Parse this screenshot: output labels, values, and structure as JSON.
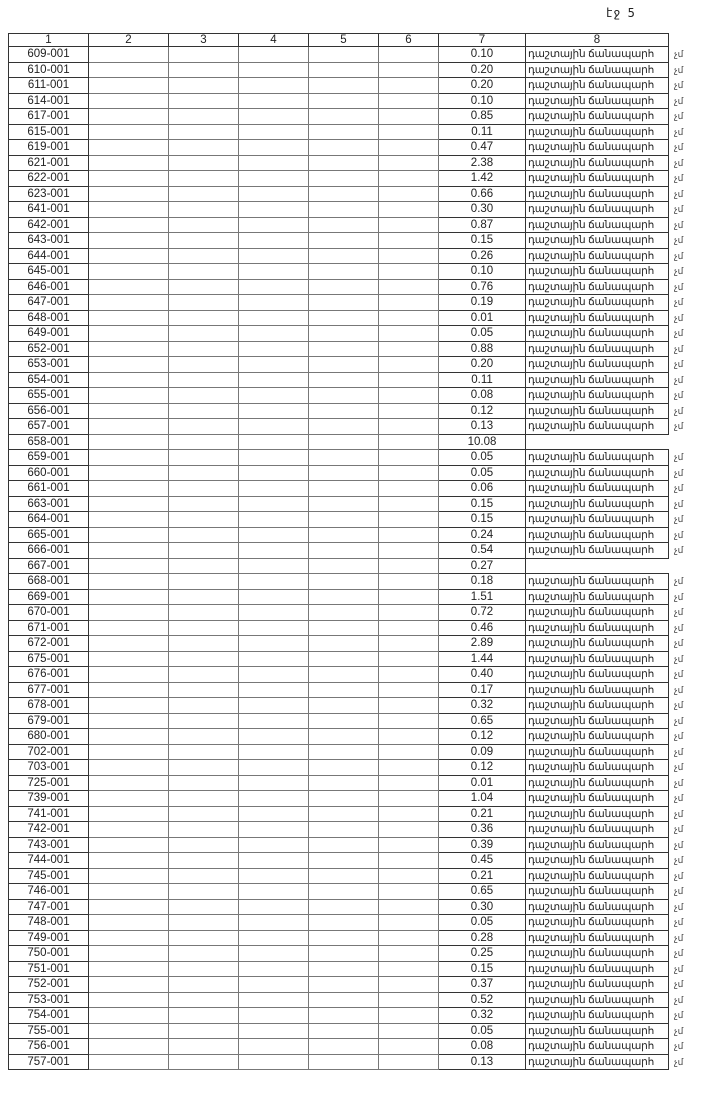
{
  "page_label": "էջ 5",
  "columns": [
    "1",
    "2",
    "3",
    "4",
    "5",
    "6",
    "7",
    "8"
  ],
  "rows": [
    [
      "609-001",
      "0.10",
      "դաշտային ճանապարհ",
      "չմ"
    ],
    [
      "610-001",
      "0.20",
      "դաշտային ճանապարհ",
      "չմ"
    ],
    [
      "611-001",
      "0.20",
      "դաշտային ճանապարհ",
      "չմ"
    ],
    [
      "614-001",
      "0.10",
      "դաշտային ճանապարհ",
      "չմ"
    ],
    [
      "617-001",
      "0.85",
      "դաշտային ճանապարհ",
      "չմ"
    ],
    [
      "615-001",
      "0.11",
      "դաշտային ճանապարհ",
      "չմ"
    ],
    [
      "619-001",
      "0.47",
      "դաշտային ճանապարհ",
      "չմ"
    ],
    [
      "621-001",
      "2.38",
      "դաշտային ճանապարհ",
      "չմ"
    ],
    [
      "622-001",
      "1.42",
      "դաշտային ճանապարհ",
      "չմ"
    ],
    [
      "623-001",
      "0.66",
      "դաշտային ճանապարհ",
      "չմ"
    ],
    [
      "641-001",
      "0.30",
      "դաշտային ճանապարհ",
      "չմ"
    ],
    [
      "642-001",
      "0.87",
      "դաշտային ճանապարհ",
      "չմ"
    ],
    [
      "643-001",
      "0.15",
      "դաշտային ճանապարհ",
      "չմ"
    ],
    [
      "644-001",
      "0.26",
      "դաշտային ճանապարհ",
      "չմ"
    ],
    [
      "645-001",
      "0.10",
      "դաշտային ճանապարհ",
      "չմ"
    ],
    [
      "646-001",
      "0.76",
      "դաշտային ճանապարհ",
      "չմ"
    ],
    [
      "647-001",
      "0.19",
      "դաշտային ճանապարհ",
      "չմ"
    ],
    [
      "648-001",
      "0.01",
      "դաշտային ճանապարհ",
      "չմ"
    ],
    [
      "649-001",
      "0.05",
      "դաշտային ճանապարհ",
      "չմ"
    ],
    [
      "652-001",
      "0.88",
      "դաշտային ճանապարհ",
      "չմ"
    ],
    [
      "653-001",
      "0.20",
      "դաշտային ճանապարհ",
      "չմ"
    ],
    [
      "654-001",
      "0.11",
      "դաշտային ճանապարհ",
      "չմ"
    ],
    [
      "655-001",
      "0.08",
      "դաշտային ճանապարհ",
      "չմ"
    ],
    [
      "656-001",
      "0.12",
      "դաշտային ճանապարհ",
      "չմ"
    ],
    [
      "657-001",
      "0.13",
      "դաշտային ճանապարհ",
      "չմ"
    ],
    [
      "658-001",
      "10.08",
      "",
      ""
    ],
    [
      "659-001",
      "0.05",
      "դաշտային ճանապարհ",
      "չմ"
    ],
    [
      "660-001",
      "0.05",
      "դաշտային ճանապարհ",
      "չմ"
    ],
    [
      "661-001",
      "0.06",
      "դաշտային ճանապարհ",
      "չմ"
    ],
    [
      "663-001",
      "0.15",
      "դաշտային ճանապարհ",
      "չմ"
    ],
    [
      "664-001",
      "0.15",
      "դաշտային ճանապարհ",
      "չմ"
    ],
    [
      "665-001",
      "0.24",
      "դաշտային ճանապարհ",
      "չմ"
    ],
    [
      "666-001",
      "0.54",
      "դաշտային ճանապարհ",
      "չմ"
    ],
    [
      "667-001",
      "0.27",
      "",
      ""
    ],
    [
      "668-001",
      "0.18",
      "դաշտային ճանապարհ",
      "չմ"
    ],
    [
      "669-001",
      "1.51",
      "դաշտային ճանապարհ",
      "չմ"
    ],
    [
      "670-001",
      "0.72",
      "դաշտային ճանապարհ",
      "չմ"
    ],
    [
      "671-001",
      "0.46",
      "դաշտային ճանապարհ",
      "չմ"
    ],
    [
      "672-001",
      "2.89",
      "դաշտային ճանապարհ",
      "չմ"
    ],
    [
      "675-001",
      "1.44",
      "դաշտային ճանապարհ",
      "չմ"
    ],
    [
      "676-001",
      "0.40",
      "դաշտային ճանապարհ",
      "չմ"
    ],
    [
      "677-001",
      "0.17",
      "դաշտային ճանապարհ",
      "չմ"
    ],
    [
      "678-001",
      "0.32",
      "դաշտային ճանապարհ",
      "չմ"
    ],
    [
      "679-001",
      "0.65",
      "դաշտային ճանապարհ",
      "չմ"
    ],
    [
      "680-001",
      "0.12",
      "դաշտային ճանապարհ",
      "չմ"
    ],
    [
      "702-001",
      "0.09",
      "դաշտային ճանապարհ",
      "չմ"
    ],
    [
      "703-001",
      "0.12",
      "դաշտային ճանապարհ",
      "չմ"
    ],
    [
      "725-001",
      "0.01",
      "դաշտային ճանապարհ",
      "չմ"
    ],
    [
      "739-001",
      "1.04",
      "դաշտային ճանապարհ",
      "չմ"
    ],
    [
      "741-001",
      "0.21",
      "դաշտային ճանապարհ",
      "չմ"
    ],
    [
      "742-001",
      "0.36",
      "դաշտային ճանապարհ",
      "չմ"
    ],
    [
      "743-001",
      "0.39",
      "դաշտային ճանապարհ",
      "չմ"
    ],
    [
      "744-001",
      "0.45",
      "դաշտային ճանապարհ",
      "չմ"
    ],
    [
      "745-001",
      "0.21",
      "դաշտային ճանապարհ",
      "չմ"
    ],
    [
      "746-001",
      "0.65",
      "դաշտային ճանապարհ",
      "չմ"
    ],
    [
      "747-001",
      "0.30",
      "դաշտային ճանապարհ",
      "չմ"
    ],
    [
      "748-001",
      "0.05",
      "դաշտային ճանապարհ",
      "չմ"
    ],
    [
      "749-001",
      "0.28",
      "դաշտային ճանապարհ",
      "չմ"
    ],
    [
      "750-001",
      "0.25",
      "դաշտային ճանապարհ",
      "չմ"
    ],
    [
      "751-001",
      "0.15",
      "դաշտային ճանապարհ",
      "չմ"
    ],
    [
      "752-001",
      "0.37",
      "դաշտային ճանապարհ",
      "չմ"
    ],
    [
      "753-001",
      "0.52",
      "դաշտային ճանապարհ",
      "չմ"
    ],
    [
      "754-001",
      "0.32",
      "դաշտային ճանապարհ",
      "չմ"
    ],
    [
      "755-001",
      "0.05",
      "դաշտային ճանապարհ",
      "չմ"
    ],
    [
      "756-001",
      "0.08",
      "դաշտային ճանապարհ",
      "չմ"
    ],
    [
      "757-001",
      "0.13",
      "դաշտային ճանապարհ",
      "չմ"
    ]
  ]
}
